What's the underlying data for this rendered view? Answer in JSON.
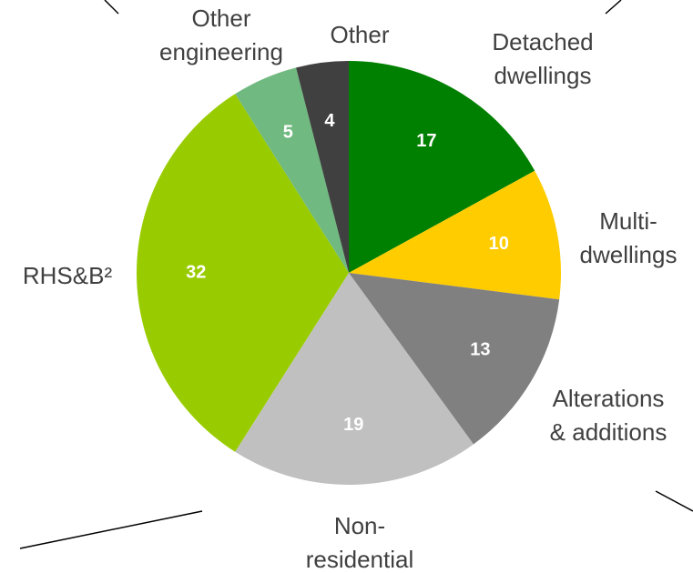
{
  "chart_data": {
    "type": "pie",
    "categories": [
      "Detached\ndwellings",
      "Multi-\ndwellings",
      "Alterations\n& additions",
      "Non-\nresidential",
      "RHS&B²",
      "Other\nengineering",
      "Other"
    ],
    "values": [
      17,
      10,
      13,
      19,
      32,
      5,
      4
    ],
    "colors": [
      "#008000",
      "#ffcc00",
      "#808080",
      "#c0c0c0",
      "#99cc00",
      "#70b980",
      "#404040"
    ]
  }
}
